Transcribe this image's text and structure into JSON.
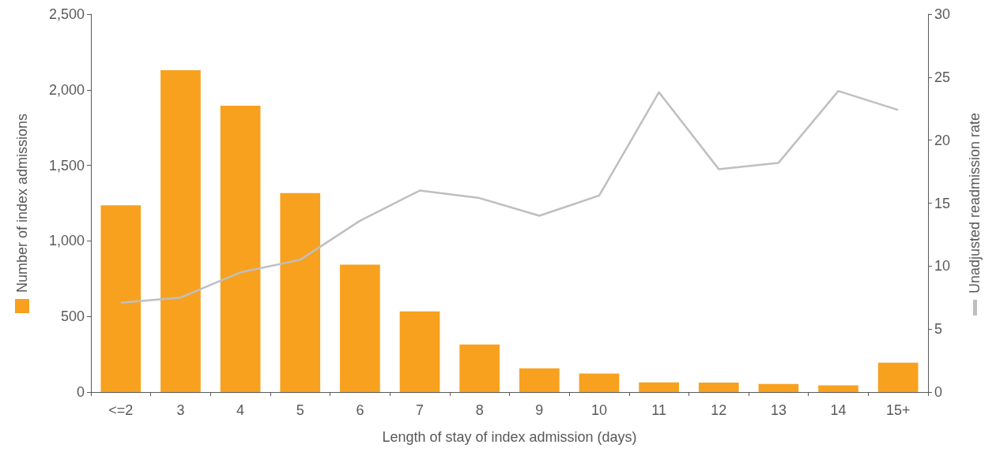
{
  "chart_data": {
    "type": "bar",
    "xlabel": "Length of stay of index admission (days)",
    "ylabel": "Number of index admissions",
    "y2label": "Unadjusted readmission rate",
    "categories": [
      "<=2",
      "3",
      "4",
      "5",
      "6",
      "7",
      "8",
      "9",
      "10",
      "11",
      "12",
      "13",
      "14",
      "15+"
    ],
    "series": [
      {
        "color": "#f7a11f",
        "values": [
          1235,
          2129,
          1894,
          1317,
          843,
          534,
          315,
          157,
          122,
          64,
          63,
          54,
          45,
          194
        ]
      },
      {
        "type": "line",
        "axis": "y2",
        "color": "#bfbfbf",
        "values": [
          7.1,
          7.5,
          9.5,
          10.5,
          13.6,
          16.0,
          15.4,
          14.0,
          15.6,
          23.8,
          17.7,
          18.2,
          23.9,
          22.4
        ]
      }
    ],
    "ylim": [
      0,
      2500
    ],
    "yticks": [
      0,
      500,
      {
        "value": 1000,
        "label": "1,000"
      },
      {
        "value": 1500,
        "label": "1,500"
      },
      {
        "value": 2000,
        "label": "2,000"
      },
      {
        "value": 2500,
        "label": "2,500"
      }
    ],
    "y2lim": [
      0,
      30
    ],
    "y2ticks": [
      0,
      5,
      10,
      15,
      20,
      25,
      30
    ],
    "grid": false,
    "marker": "none",
    "line_style": "solid"
  }
}
